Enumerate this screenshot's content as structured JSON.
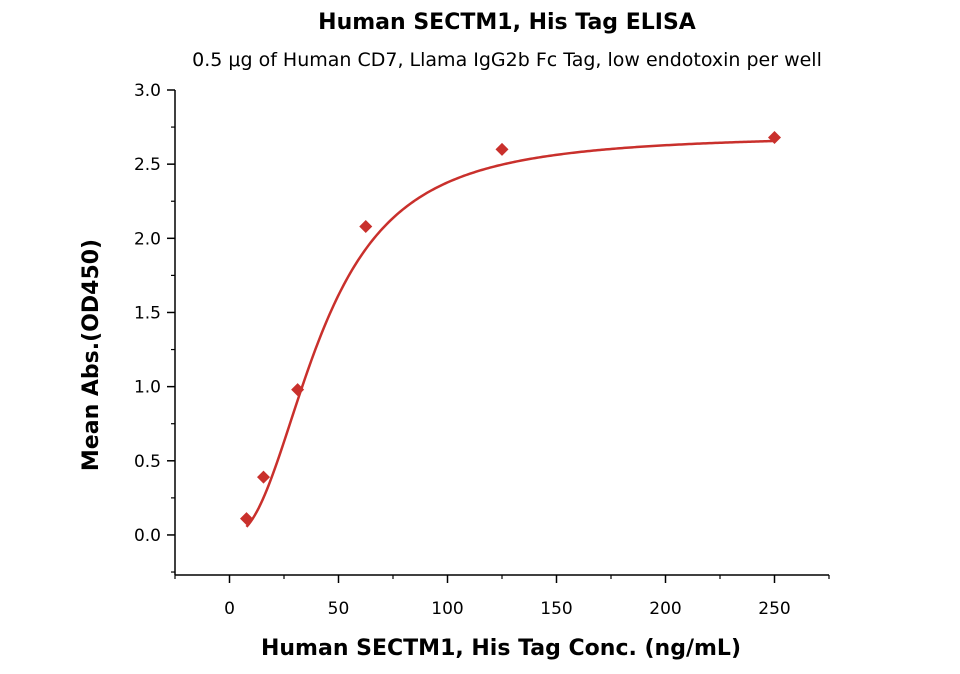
{
  "chart_data": {
    "type": "scatter",
    "title": "Human SECTM1, His Tag ELISA",
    "subtitle": "0.5 μg of Human CD7, Llama IgG2b Fc Tag, low endotoxin per well",
    "xlabel": "Human SECTM1, His Tag Conc. (ng/mL)",
    "ylabel": "Mean Abs.(OD450)",
    "xlim": [
      -25,
      275
    ],
    "ylim": [
      -0.27,
      3.0
    ],
    "x_ticks": [
      0,
      50,
      100,
      150,
      200,
      250
    ],
    "x_tick_labels": [
      "0",
      "50",
      "100",
      "150",
      "200",
      "250"
    ],
    "y_ticks": [
      0.0,
      0.5,
      1.0,
      1.5,
      2.0,
      2.5,
      3.0
    ],
    "y_tick_labels": [
      "0.0",
      "0.5",
      "1.0",
      "1.5",
      "2.0",
      "2.5",
      "3.0"
    ],
    "grid": false,
    "series": [
      {
        "x": [
          7.8,
          15.6,
          31.25,
          62.5,
          125,
          250
        ],
        "y": [
          0.11,
          0.39,
          0.98,
          2.08,
          2.6,
          2.68
        ],
        "color": "#c9302c",
        "marker": "diamond",
        "fit_curve": "sigmoidal"
      }
    ]
  }
}
